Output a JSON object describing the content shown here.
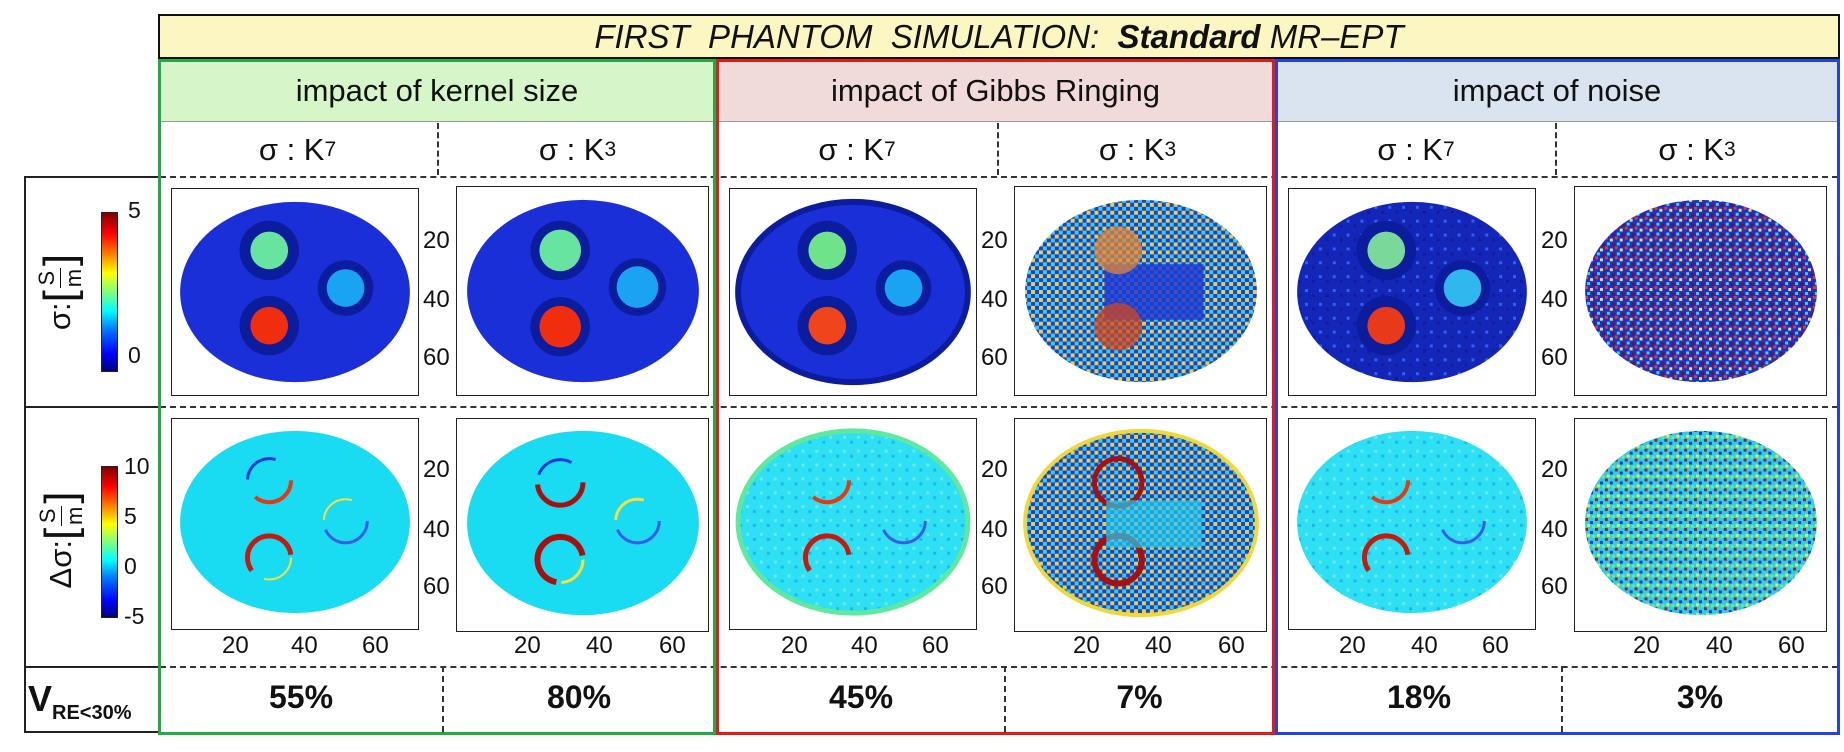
{
  "title": {
    "pre": "FIRST  PHANTOM  SIMULATION:  ",
    "bold": "Standard",
    "post": " MR–EPT"
  },
  "groups": [
    {
      "label": "impact of kernel size",
      "header_bg": "#d6f5c9",
      "border": "#22aa44"
    },
    {
      "label": "impact of Gibbs Ringing",
      "header_bg": "#f1dada",
      "border": "#e01b1b"
    },
    {
      "label": "impact of noise",
      "header_bg": "#dae3f0",
      "border": "#2244dd"
    }
  ],
  "column_headers": [
    {
      "text": "σ : K",
      "sub": "7"
    },
    {
      "text": "σ : K",
      "sub": "3"
    },
    {
      "text": "σ : K",
      "sub": "7"
    },
    {
      "text": "σ : K",
      "sub": "3"
    },
    {
      "text": "σ : K",
      "sub": "7"
    },
    {
      "text": "σ : K",
      "sub": "3"
    }
  ],
  "row_labels": {
    "sigma": {
      "prefix": "σ:",
      "num": "S",
      "den": "m"
    },
    "delta": {
      "prefix": "Δσ:",
      "num": "S",
      "den": "m"
    },
    "vre": {
      "main": "V",
      "sub": "RE<30%"
    }
  },
  "colorbars": {
    "sigma": [
      "5",
      "0"
    ],
    "delta": [
      "10",
      "5",
      "0",
      "-5"
    ]
  },
  "y_ticks": [
    "20",
    "40",
    "60"
  ],
  "x_ticks": [
    "20",
    "40",
    "60"
  ],
  "vre_values": [
    "55%",
    "80%",
    "45%",
    "7%",
    "18%",
    "3%"
  ],
  "colors": {
    "background": "#00148f",
    "sigma_bg": "#1a2fd8",
    "delta_bg": "#19dbf2"
  }
}
